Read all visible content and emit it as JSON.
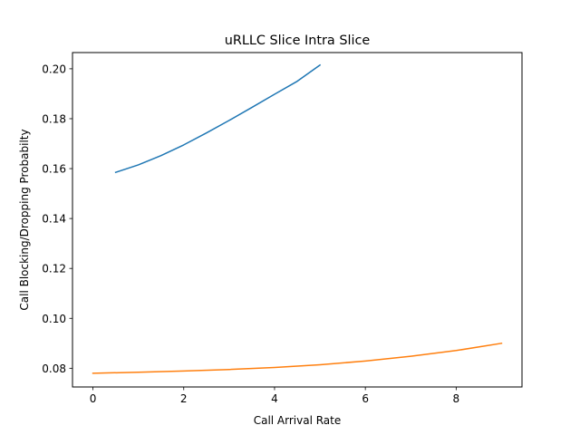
{
  "chart_data": {
    "type": "line",
    "title": "uRLLC Slice Intra Slice",
    "xlabel": "Call Arrival Rate",
    "ylabel": "Call Blocking/Dropping Probabilty",
    "xlim": [
      -0.45,
      9.45
    ],
    "ylim": [
      0.0725,
      0.2065
    ],
    "xticks": [
      0,
      2,
      4,
      6,
      8
    ],
    "xtick_labels": [
      "0",
      "2",
      "4",
      "6",
      "8"
    ],
    "yticks": [
      0.08,
      0.1,
      0.12,
      0.14,
      0.16,
      0.18,
      0.2
    ],
    "ytick_labels": [
      "0.08",
      "0.10",
      "0.12",
      "0.14",
      "0.16",
      "0.18",
      "0.20"
    ],
    "grid": false,
    "series": [
      {
        "color": "#1f77b4",
        "x": [
          0.5,
          1.0,
          1.5,
          2.0,
          2.5,
          3.0,
          3.5,
          4.0,
          4.5,
          5.0
        ],
        "y": [
          0.1585,
          0.1615,
          0.1652,
          0.1695,
          0.1743,
          0.1793,
          0.1845,
          0.1898,
          0.195,
          0.2015
        ]
      },
      {
        "color": "#ff7f0e",
        "x": [
          0,
          1,
          2,
          3,
          4,
          5,
          6,
          7,
          8,
          9
        ],
        "y": [
          0.078,
          0.0784,
          0.0789,
          0.0795,
          0.0803,
          0.0814,
          0.0829,
          0.0848,
          0.0871,
          0.09
        ]
      }
    ]
  }
}
